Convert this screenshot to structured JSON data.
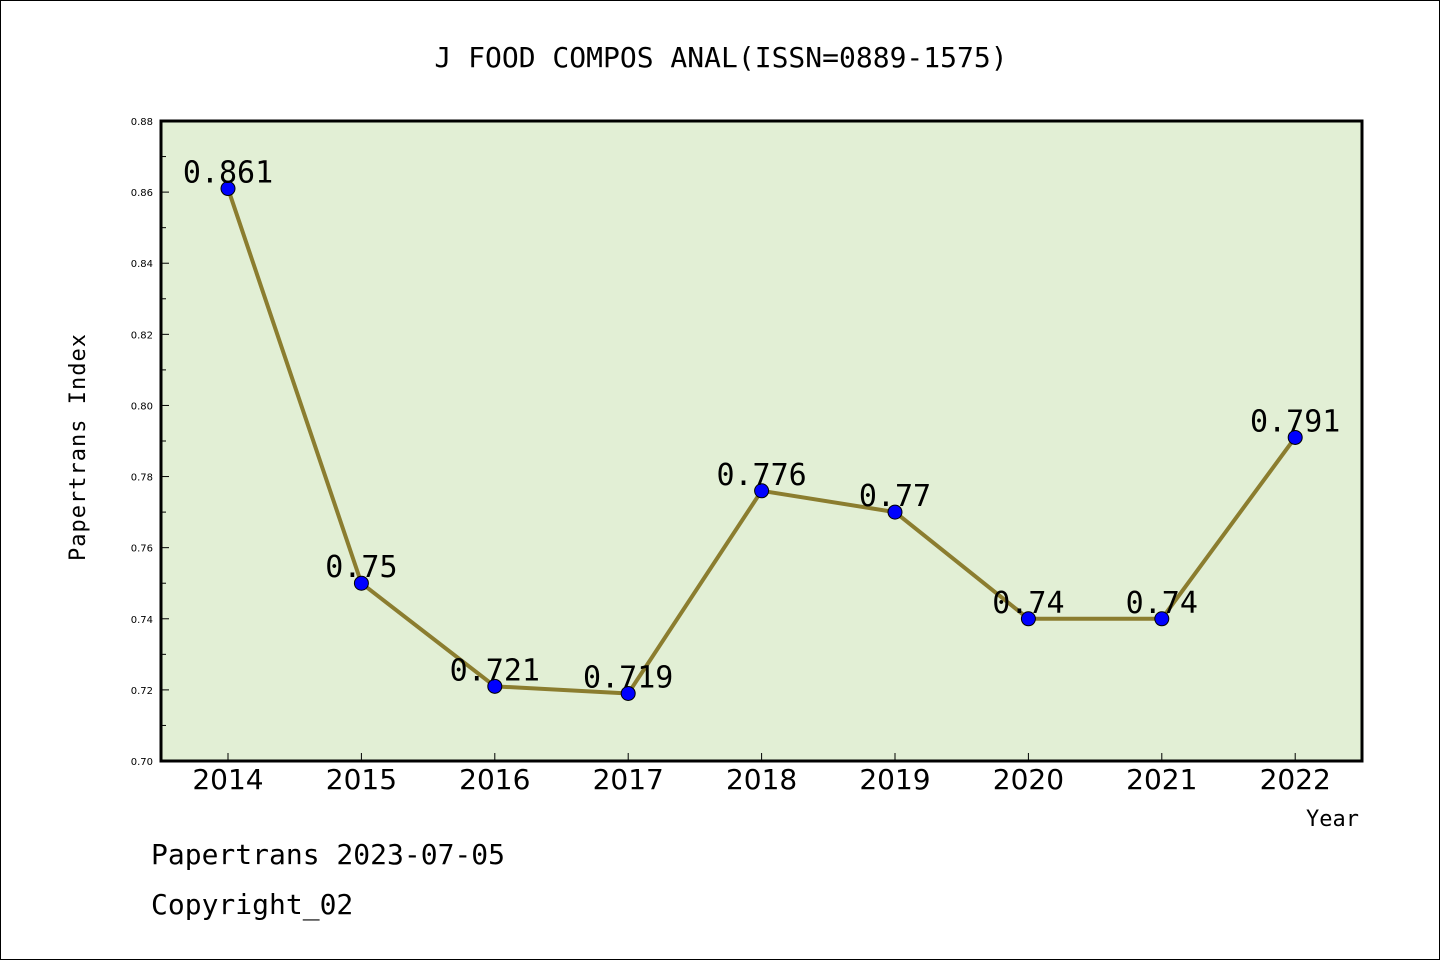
{
  "chart_data": {
    "type": "line",
    "title": "J FOOD COMPOS ANAL(ISSN=0889-1575)",
    "xlabel": "Year",
    "ylabel": "Papertrans Index",
    "ylim": [
      0.7,
      0.88
    ],
    "y_ticks": [
      "0.70",
      "0.72",
      "0.74",
      "0.76",
      "0.78",
      "0.80",
      "0.82",
      "0.84",
      "0.86",
      "0.88"
    ],
    "categories": [
      "2014",
      "2015",
      "2016",
      "2017",
      "2018",
      "2019",
      "2020",
      "2021",
      "2022"
    ],
    "series": [
      {
        "values": [
          0.861,
          0.75,
          0.721,
          0.719,
          0.776,
          0.77,
          0.74,
          0.74,
          0.791
        ]
      }
    ],
    "data_labels": [
      "0.861",
      "0.75",
      "0.721",
      "0.719",
      "0.776",
      "0.77",
      "0.74",
      "0.74",
      "0.791"
    ],
    "grid": false,
    "colors": {
      "plot_bg": "#e2efd5",
      "line": "#8b7d2f",
      "marker": "#0000ff"
    }
  },
  "footer": {
    "line1": "Papertrans 2023-07-05",
    "line2": "Copyright_02"
  }
}
